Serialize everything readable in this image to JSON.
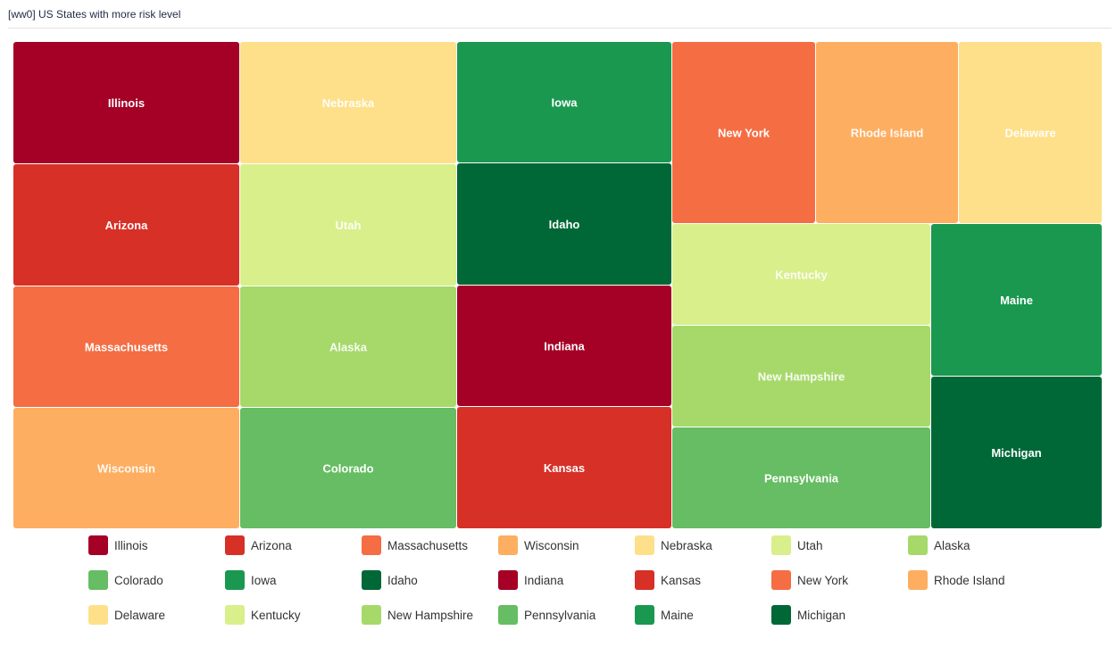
{
  "panel": {
    "title": "[ww0] US States with more risk level"
  },
  "chart_data": {
    "type": "treemap",
    "title": "[ww0] US States with more risk level",
    "legend_position": "bottom",
    "items": [
      {
        "name": "Illinois",
        "color": "#a50026"
      },
      {
        "name": "Arizona",
        "color": "#d73027"
      },
      {
        "name": "Massachusetts",
        "color": "#f46d43"
      },
      {
        "name": "Wisconsin",
        "color": "#fdae61"
      },
      {
        "name": "Nebraska",
        "color": "#fee08b"
      },
      {
        "name": "Utah",
        "color": "#d9ef8b"
      },
      {
        "name": "Alaska",
        "color": "#a6d96a"
      },
      {
        "name": "Colorado",
        "color": "#66bd63"
      },
      {
        "name": "Iowa",
        "color": "#1a9850"
      },
      {
        "name": "Idaho",
        "color": "#006837"
      },
      {
        "name": "Indiana",
        "color": "#a50026"
      },
      {
        "name": "Kansas",
        "color": "#d73027"
      },
      {
        "name": "New York",
        "color": "#f46d43"
      },
      {
        "name": "Rhode Island",
        "color": "#fdae61"
      },
      {
        "name": "Delaware",
        "color": "#fee08b"
      },
      {
        "name": "Kentucky",
        "color": "#d9ef8b"
      },
      {
        "name": "New Hampshire",
        "color": "#a6d96a"
      },
      {
        "name": "Pennsylvania",
        "color": "#66bd63"
      },
      {
        "name": "Maine",
        "color": "#1a9850"
      },
      {
        "name": "Michigan",
        "color": "#006837"
      }
    ]
  }
}
